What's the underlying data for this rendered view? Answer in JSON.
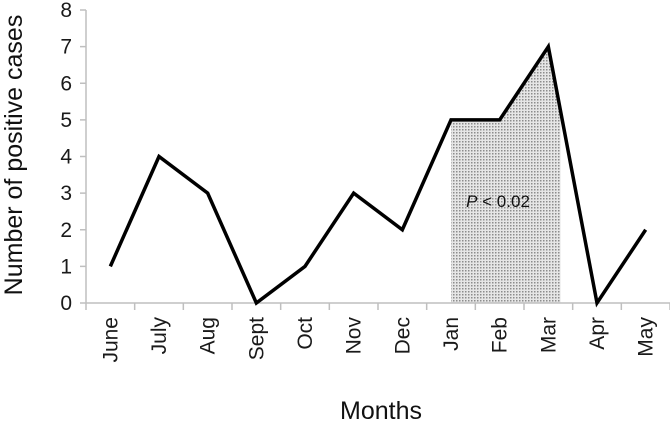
{
  "chart_data": {
    "type": "line",
    "categories": [
      "June",
      "July",
      "Aug",
      "Sept",
      "Oct",
      "Nov",
      "Dec",
      "Jan",
      "Feb",
      "Mar",
      "Apr",
      "May"
    ],
    "values": [
      1,
      4,
      3,
      0,
      1,
      3,
      2,
      5,
      5,
      7,
      0,
      2
    ],
    "xlabel": "Months",
    "ylabel": "Number of positive cases",
    "ylim": [
      0,
      8
    ],
    "yticks": [
      "0",
      "1",
      "2",
      "3",
      "4",
      "5",
      "6",
      "7",
      "8"
    ],
    "grid": false,
    "shaded_region": {
      "from_category": "Jan",
      "to_category": "Mar",
      "label_p": "P",
      "label_rest": " < 0.02"
    },
    "colors": {
      "line": "#000000",
      "axis": "#bfbfbf",
      "shade": "#a6a6a6"
    }
  }
}
